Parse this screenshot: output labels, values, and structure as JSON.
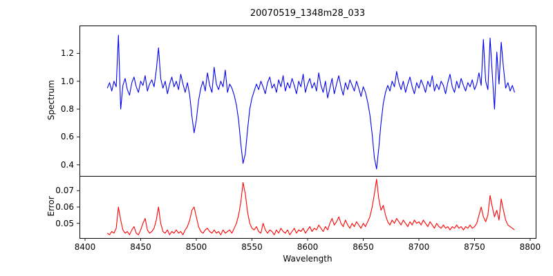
{
  "chart_data": {
    "type": "line",
    "title": "20070519_1348m28_033",
    "xlabel": "Wavelength",
    "xlim": [
      8395,
      8805
    ],
    "xtick_values": [
      8400,
      8450,
      8500,
      8550,
      8600,
      8650,
      8700,
      8750,
      8800
    ],
    "xtick_labels": [
      "8400",
      "8450",
      "8500",
      "8550",
      "8600",
      "8650",
      "8700",
      "8750",
      "8800"
    ],
    "grid": false,
    "legend": "none",
    "x": [
      8420,
      8422,
      8424,
      8426,
      8428,
      8430,
      8432,
      8434,
      8436,
      8438,
      8440,
      8442,
      8444,
      8446,
      8448,
      8450,
      8452,
      8454,
      8456,
      8458,
      8460,
      8462,
      8464,
      8466,
      8468,
      8470,
      8472,
      8474,
      8476,
      8478,
      8480,
      8482,
      8484,
      8486,
      8488,
      8490,
      8492,
      8494,
      8496,
      8498,
      8500,
      8502,
      8504,
      8506,
      8508,
      8510,
      8512,
      8514,
      8516,
      8518,
      8520,
      8522,
      8524,
      8526,
      8528,
      8530,
      8532,
      8534,
      8536,
      8538,
      8540,
      8542,
      8544,
      8546,
      8548,
      8550,
      8552,
      8554,
      8556,
      8558,
      8560,
      8562,
      8564,
      8566,
      8568,
      8570,
      8572,
      8574,
      8576,
      8578,
      8580,
      8582,
      8584,
      8586,
      8588,
      8590,
      8592,
      8594,
      8596,
      8598,
      8600,
      8602,
      8604,
      8606,
      8608,
      8610,
      8612,
      8614,
      8616,
      8618,
      8620,
      8622,
      8624,
      8626,
      8628,
      8630,
      8632,
      8634,
      8636,
      8638,
      8640,
      8642,
      8644,
      8646,
      8648,
      8650,
      8652,
      8654,
      8656,
      8658,
      8660,
      8662,
      8664,
      8666,
      8668,
      8670,
      8672,
      8674,
      8676,
      8678,
      8680,
      8682,
      8684,
      8686,
      8688,
      8690,
      8692,
      8694,
      8696,
      8698,
      8700,
      8702,
      8704,
      8706,
      8708,
      8710,
      8712,
      8714,
      8716,
      8718,
      8720,
      8722,
      8724,
      8726,
      8728,
      8730,
      8732,
      8734,
      8736,
      8738,
      8740,
      8742,
      8744,
      8746,
      8748,
      8750,
      8752,
      8754,
      8756,
      8758,
      8760,
      8762,
      8764,
      8766,
      8768,
      8770,
      8772,
      8774,
      8776,
      8778,
      8780,
      8782,
      8784,
      8786
    ],
    "subplots": [
      {
        "name": "spectrum",
        "ylabel": "Spectrum",
        "color": "#0000ee",
        "ylim": [
          0.32,
          1.4
        ],
        "ytick_values": [
          0.4,
          0.6,
          0.8,
          1.0,
          1.2
        ],
        "ytick_labels": [
          "0.4",
          "0.6",
          "0.8",
          "1.0",
          "1.2"
        ],
        "y": [
          0.95,
          0.99,
          0.93,
          1.0,
          0.96,
          1.33,
          0.8,
          0.97,
          1.02,
          0.94,
          0.9,
          0.99,
          1.03,
          0.96,
          0.92,
          1.0,
          0.97,
          1.04,
          0.93,
          0.98,
          1.01,
          0.96,
          1.08,
          1.24,
          1.02,
          0.95,
          1.0,
          0.91,
          0.98,
          1.03,
          0.96,
          1.0,
          0.94,
          1.05,
          0.98,
          0.92,
          0.99,
          0.9,
          0.75,
          0.63,
          0.72,
          0.86,
          0.95,
          1.0,
          0.93,
          1.06,
          0.97,
          0.92,
          1.1,
          0.98,
          0.94,
          1.0,
          0.96,
          1.08,
          0.92,
          0.98,
          0.95,
          0.9,
          0.83,
          0.72,
          0.55,
          0.41,
          0.48,
          0.65,
          0.8,
          0.88,
          0.93,
          0.98,
          0.94,
          1.0,
          0.96,
          0.91,
          0.99,
          1.03,
          0.95,
          0.98,
          0.92,
          1.01,
          0.96,
          1.04,
          0.93,
          0.99,
          0.95,
          1.02,
          0.97,
          0.91,
          1.0,
          0.96,
          1.05,
          0.92,
          0.98,
          1.02,
          0.95,
          0.99,
          0.93,
          1.06,
          0.97,
          0.92,
          1.0,
          0.88,
          0.95,
          1.02,
          0.91,
          0.98,
          1.04,
          0.96,
          0.9,
          0.99,
          0.94,
          1.01,
          0.97,
          0.93,
          1.0,
          0.95,
          0.89,
          0.96,
          0.92,
          0.85,
          0.76,
          0.62,
          0.45,
          0.37,
          0.52,
          0.7,
          0.84,
          0.92,
          0.97,
          0.93,
          1.0,
          0.96,
          1.07,
          0.99,
          0.94,
          1.0,
          0.92,
          0.98,
          1.03,
          0.96,
          0.91,
          0.99,
          0.95,
          1.01,
          0.97,
          0.92,
          1.0,
          0.96,
          1.04,
          0.93,
          0.98,
          0.94,
          1.0,
          0.97,
          0.91,
          0.99,
          1.05,
          0.96,
          0.92,
          1.0,
          0.95,
          1.02,
          0.97,
          0.93,
          0.99,
          0.96,
          1.01,
          0.94,
          0.98,
          1.06,
          0.97,
          1.3,
          1.0,
          0.94,
          1.31,
          1.05,
          0.8,
          1.21,
          0.98,
          1.28,
          1.1,
          0.95,
          0.99,
          0.93,
          0.97,
          0.92
        ]
      },
      {
        "name": "error",
        "ylabel": "Error",
        "color": "#ff0000",
        "ylim": [
          0.041,
          0.079
        ],
        "ytick_values": [
          0.05,
          0.06,
          0.07
        ],
        "ytick_labels": [
          "0.05",
          "0.06",
          "0.07"
        ],
        "y": [
          0.044,
          0.043,
          0.045,
          0.044,
          0.047,
          0.06,
          0.052,
          0.046,
          0.044,
          0.045,
          0.043,
          0.046,
          0.048,
          0.044,
          0.043,
          0.046,
          0.05,
          0.053,
          0.046,
          0.044,
          0.045,
          0.047,
          0.052,
          0.06,
          0.05,
          0.045,
          0.044,
          0.046,
          0.043,
          0.045,
          0.044,
          0.046,
          0.044,
          0.045,
          0.043,
          0.046,
          0.048,
          0.052,
          0.058,
          0.06,
          0.054,
          0.048,
          0.045,
          0.044,
          0.046,
          0.047,
          0.045,
          0.044,
          0.046,
          0.044,
          0.045,
          0.043,
          0.046,
          0.044,
          0.045,
          0.046,
          0.044,
          0.047,
          0.05,
          0.055,
          0.063,
          0.075,
          0.068,
          0.057,
          0.05,
          0.047,
          0.046,
          0.048,
          0.045,
          0.044,
          0.05,
          0.046,
          0.044,
          0.046,
          0.045,
          0.043,
          0.046,
          0.044,
          0.047,
          0.045,
          0.044,
          0.046,
          0.043,
          0.045,
          0.047,
          0.044,
          0.046,
          0.045,
          0.047,
          0.044,
          0.046,
          0.048,
          0.045,
          0.047,
          0.046,
          0.049,
          0.047,
          0.045,
          0.048,
          0.046,
          0.05,
          0.053,
          0.049,
          0.051,
          0.054,
          0.05,
          0.048,
          0.052,
          0.049,
          0.047,
          0.05,
          0.048,
          0.051,
          0.049,
          0.047,
          0.05,
          0.048,
          0.051,
          0.054,
          0.06,
          0.068,
          0.077,
          0.065,
          0.058,
          0.061,
          0.055,
          0.051,
          0.049,
          0.052,
          0.05,
          0.053,
          0.051,
          0.049,
          0.052,
          0.05,
          0.048,
          0.051,
          0.049,
          0.052,
          0.05,
          0.051,
          0.049,
          0.052,
          0.05,
          0.048,
          0.051,
          0.049,
          0.047,
          0.05,
          0.048,
          0.047,
          0.049,
          0.047,
          0.048,
          0.046,
          0.048,
          0.047,
          0.049,
          0.047,
          0.048,
          0.046,
          0.048,
          0.047,
          0.049,
          0.047,
          0.048,
          0.05,
          0.055,
          0.06,
          0.054,
          0.051,
          0.055,
          0.067,
          0.06,
          0.054,
          0.058,
          0.052,
          0.065,
          0.058,
          0.052,
          0.049,
          0.048,
          0.047,
          0.046
        ]
      }
    ]
  }
}
